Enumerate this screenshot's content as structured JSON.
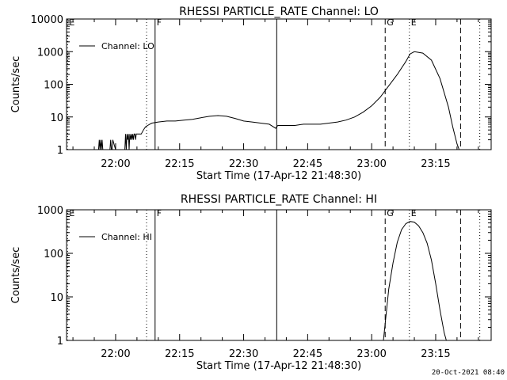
{
  "footer": {
    "timestamp": "20-Oct-2021 08:40"
  },
  "chart_data": [
    {
      "type": "line",
      "title": "RHESSI PARTICLE_RATE Channel: LO",
      "xlabel": "Start Time (17-Apr-12 21:48:30)",
      "ylabel": "Counts/sec",
      "y_scale": "log",
      "ylim": [
        1,
        10000
      ],
      "y_ticks": [
        1,
        10,
        100,
        1000,
        10000
      ],
      "y_tick_labels": [
        "1",
        "10",
        "100",
        "1000",
        "10000"
      ],
      "x_time_range": [
        "21:48:30",
        "23:28:00"
      ],
      "x_ticks": [
        "22:00",
        "22:15",
        "22:30",
        "22:45",
        "23:00",
        "23:15"
      ],
      "legend": {
        "label": "Channel: LO",
        "position": "top-left"
      },
      "markers": [
        {
          "label": "E",
          "time": "21:48:45",
          "style": "dotted",
          "labeled": true
        },
        {
          "label": "F",
          "time": "22:07:15",
          "style": "dotted",
          "labeled": false
        },
        {
          "label": "F",
          "time": "22:09:15",
          "style": "solid",
          "labeled": true
        },
        {
          "label": "",
          "time": "22:37:45",
          "style": "solid",
          "labeled": false
        },
        {
          "label": "G",
          "time": "23:03:10",
          "style": "dashed",
          "labeled": true
        },
        {
          "label": "E",
          "time": "23:08:50",
          "style": "dotted",
          "labeled": true
        },
        {
          "label": "",
          "time": "23:20:50",
          "style": "dashed",
          "labeled": false
        },
        {
          "label": "",
          "time": "23:25:20",
          "style": "dotted",
          "labeled": false
        }
      ],
      "series": [
        {
          "x": [
            "21:56:00",
            "21:56:10",
            "21:56:20",
            "21:56:30",
            "21:56:40",
            "21:56:50",
            "21:57:00",
            "21:57:10",
            "21:58:40",
            "21:58:50",
            "21:59:00",
            "21:59:10",
            "21:59:20",
            "22:00:00",
            "22:02:10",
            "22:02:20",
            "22:02:30",
            "22:02:40",
            "22:02:50",
            "22:03:00",
            "22:03:10",
            "22:03:20",
            "22:03:30",
            "22:03:40",
            "22:03:50",
            "22:04:00",
            "22:04:10",
            "22:04:20",
            "22:04:30",
            "22:04:40",
            "22:04:50",
            "22:05:00",
            "22:05:10",
            "22:05:20",
            "22:05:30",
            "22:06:00",
            "22:06:30",
            "22:07:00",
            "22:07:30",
            "22:08:00",
            "22:08:30",
            "22:10:00",
            "22:12:00",
            "22:14:00",
            "22:16:00",
            "22:18:00",
            "22:20:00",
            "22:22:00",
            "22:24:00",
            "22:26:00",
            "22:28:00",
            "22:30:00",
            "22:32:00",
            "22:34:00",
            "22:36:00",
            "22:37:30",
            "22:38:00",
            "22:40:00",
            "22:42:00",
            "22:44:00",
            "22:46:00",
            "22:48:00",
            "22:50:00",
            "22:52:00",
            "22:54:00",
            "22:56:00",
            "22:58:00",
            "23:00:00",
            "23:02:00",
            "23:04:00",
            "23:06:00",
            "23:08:00",
            "23:09:00",
            "23:10:00",
            "23:12:00",
            "23:14:00",
            "23:16:00",
            "23:18:00",
            "23:19:00",
            "23:20:00",
            "23:20:30"
          ],
          "y": [
            1,
            2,
            1,
            2,
            1,
            2,
            1,
            1,
            1,
            2,
            1,
            1,
            2,
            1,
            1,
            3,
            1,
            3,
            2,
            3,
            1,
            3,
            2,
            3,
            2,
            3,
            2,
            3,
            3,
            2,
            3,
            3,
            3,
            3,
            3,
            3,
            4,
            5,
            5.5,
            6,
            6.5,
            7,
            7.5,
            7.5,
            8,
            8.5,
            9.5,
            10.5,
            11,
            10.5,
            9,
            7.5,
            7,
            6.5,
            6,
            4.5,
            5.5,
            5.5,
            5.5,
            6,
            6,
            6,
            6.5,
            7,
            8,
            10,
            14,
            22,
            40,
            90,
            200,
            500,
            850,
            1000,
            900,
            550,
            150,
            20,
            5,
            1.5,
            1
          ]
        }
      ]
    },
    {
      "type": "line",
      "title": "RHESSI PARTICLE_RATE Channel: HI",
      "xlabel": "Start Time (17-Apr-12 21:48:30)",
      "ylabel": "Counts/sec",
      "y_scale": "log",
      "ylim": [
        1,
        1000
      ],
      "y_ticks": [
        1,
        10,
        100,
        1000
      ],
      "y_tick_labels": [
        "1",
        "10",
        "100",
        "1000"
      ],
      "x_time_range": [
        "21:48:30",
        "23:28:00"
      ],
      "x_ticks": [
        "22:00",
        "22:15",
        "22:30",
        "22:45",
        "23:00",
        "23:15"
      ],
      "legend": {
        "label": "Channel: HI",
        "position": "top-left"
      },
      "markers": [
        {
          "label": "E",
          "time": "21:48:45",
          "style": "dotted",
          "labeled": true
        },
        {
          "label": "F",
          "time": "22:07:15",
          "style": "dotted",
          "labeled": false
        },
        {
          "label": "F",
          "time": "22:09:15",
          "style": "solid",
          "labeled": true
        },
        {
          "label": "",
          "time": "22:37:45",
          "style": "solid",
          "labeled": false
        },
        {
          "label": "G",
          "time": "23:03:10",
          "style": "dashed",
          "labeled": true
        },
        {
          "label": "E",
          "time": "23:08:50",
          "style": "dotted",
          "labeled": true
        },
        {
          "label": "",
          "time": "23:20:50",
          "style": "dashed",
          "labeled": false
        },
        {
          "label": "",
          "time": "23:25:20",
          "style": "dotted",
          "labeled": false
        }
      ],
      "series": [
        {
          "x": [
            "23:02:45",
            "23:03:30",
            "23:04:00",
            "23:05:00",
            "23:06:00",
            "23:07:00",
            "23:08:00",
            "23:09:00",
            "23:10:00",
            "23:11:00",
            "23:12:00",
            "23:13:00",
            "23:14:00",
            "23:15:00",
            "23:16:00",
            "23:17:00",
            "23:17:30"
          ],
          "y": [
            1,
            5,
            15,
            60,
            180,
            350,
            480,
            540,
            520,
            430,
            300,
            170,
            70,
            20,
            5,
            1.5,
            1
          ]
        }
      ]
    }
  ]
}
